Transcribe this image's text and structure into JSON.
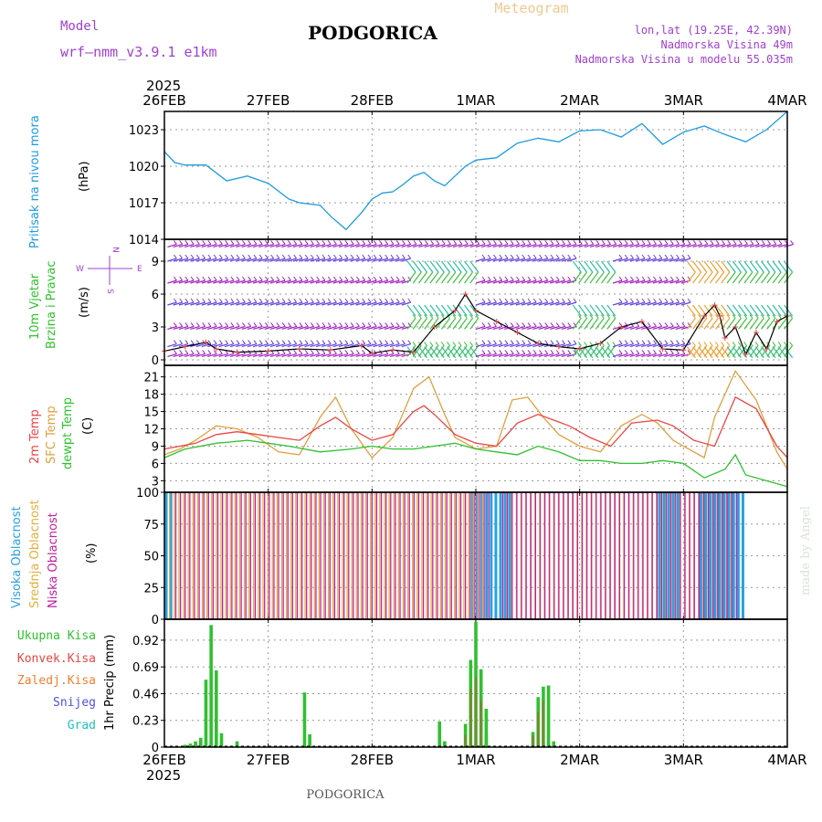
{
  "header": {
    "model_label": "Model",
    "model_name": "wrf–nmm_v3.9.1  e1km",
    "city": "PODGORICA",
    "meteogram": "Meteogram",
    "lonlat": "lon,lat (19.25E, 42.39N)",
    "elevation": "Nadmorska Visina 49m",
    "model_elevation": "Nadmorska Visina u modelu 55.035m"
  },
  "footer": {
    "city": "PODGORICA",
    "credit": "made by Angel"
  },
  "colors": {
    "pressure": "#1e9be0",
    "temp2m": "#e84545",
    "sfc": "#e0a040",
    "dewpt": "#30c030",
    "high_cloud": "#2aa0e0",
    "mid_cloud": "#e0b040",
    "low_cloud": "#c020a0",
    "rain_total": "#30c030",
    "rain_conv": "#e84545",
    "rain_frz": "#f07f30",
    "snow": "#5050e0",
    "graupel": "#20c0c0",
    "axis_label_purple": "#a040d0",
    "year_label": "#000000"
  },
  "chart_data": [
    {
      "type": "line",
      "panel": "pressure",
      "y_label_left": "Pritisak na nivou mora",
      "ylabel": "(hPa)",
      "ylim": [
        1014,
        1024.5
      ],
      "yticks": [
        1014,
        1017,
        1020,
        1023
      ],
      "grid": true,
      "x_ticks": [
        "26FEB",
        "27FEB",
        "28FEB",
        "1MAR",
        "2MAR",
        "3MAR",
        "4MAR"
      ],
      "x_year": "2025",
      "series": [
        {
          "x": [
            0,
            0.1,
            0.2,
            0.4,
            0.6,
            0.8,
            1.0,
            1.2,
            1.3,
            1.5,
            1.6,
            1.75,
            1.9,
            2.0,
            2.1,
            2.2,
            2.3,
            2.4,
            2.5,
            2.6,
            2.7,
            2.8,
            2.9,
            3.0,
            3.2,
            3.4,
            3.6,
            3.8,
            4.0,
            4.2,
            4.4,
            4.6,
            4.8,
            5.0,
            5.2,
            5.4,
            5.6,
            5.8,
            6.0
          ],
          "y": [
            1021.2,
            1020.3,
            1020.1,
            1020.1,
            1018.8,
            1019.2,
            1018.6,
            1017.3,
            1017.0,
            1016.8,
            1015.9,
            1014.8,
            1016.2,
            1017.3,
            1017.8,
            1017.9,
            1018.5,
            1019.2,
            1019.5,
            1018.8,
            1018.4,
            1019.2,
            1020.0,
            1020.5,
            1020.7,
            1021.9,
            1022.3,
            1022.0,
            1022.9,
            1023.0,
            1022.4,
            1023.5,
            1021.8,
            1022.8,
            1023.3,
            1022.6,
            1022.0,
            1023.0,
            1024.5
          ]
        }
      ]
    },
    {
      "type": "line",
      "panel": "wind",
      "y_label_left": [
        "10m Vjetar",
        "Brzina i Pravac"
      ],
      "ylabel": "(m/s)",
      "compass": {
        "n": "N",
        "s": "S",
        "e": "E",
        "w": "W"
      },
      "ylim": [
        -0.5,
        11
      ],
      "yticks": [
        0,
        3,
        6,
        9
      ],
      "grid": true,
      "series": [
        {
          "name": "speed",
          "x": [
            0,
            0.2,
            0.4,
            0.5,
            0.7,
            1.0,
            1.3,
            1.6,
            1.9,
            2.0,
            2.2,
            2.4,
            2.6,
            2.8,
            2.9,
            3.0,
            3.2,
            3.4,
            3.6,
            3.8,
            4.0,
            4.2,
            4.4,
            4.6,
            4.8,
            5.0,
            5.2,
            5.3,
            5.35,
            5.4,
            5.5,
            5.6,
            5.7,
            5.8,
            5.9,
            6.0
          ],
          "y": [
            0.8,
            1.2,
            1.6,
            1.0,
            0.7,
            0.8,
            1.0,
            0.9,
            1.3,
            0.6,
            0.9,
            0.7,
            3.0,
            4.5,
            6.0,
            4.5,
            3.5,
            2.5,
            1.5,
            1.2,
            1.0,
            1.5,
            3.0,
            3.5,
            1.0,
            0.9,
            4.0,
            5.0,
            4.0,
            2.0,
            3.0,
            0.5,
            2.5,
            1.0,
            3.5,
            4.0
          ]
        }
      ]
    },
    {
      "type": "line",
      "panel": "temperature",
      "y_labels": [
        "2m Temp",
        "SFC Temp",
        "dewpt Temp"
      ],
      "ylabel": "(C)",
      "ylim": [
        1,
        23
      ],
      "yticks": [
        3,
        6,
        9,
        12,
        15,
        18,
        21
      ],
      "grid": true,
      "series": [
        {
          "name": "2m Temp",
          "x": [
            0,
            0.15,
            0.3,
            0.5,
            0.7,
            0.9,
            1.1,
            1.3,
            1.5,
            1.65,
            1.8,
            2.0,
            2.2,
            2.4,
            2.5,
            2.6,
            2.8,
            3.0,
            3.2,
            3.4,
            3.6,
            3.75,
            3.9,
            4.1,
            4.3,
            4.5,
            4.75,
            4.9,
            5.1,
            5.3,
            5.5,
            5.7,
            5.9,
            6.0
          ],
          "y": [
            8.5,
            9.0,
            9.5,
            11.0,
            11.5,
            11.0,
            10.5,
            10.0,
            12.5,
            14.0,
            12.0,
            10.0,
            11.0,
            15.0,
            16.0,
            14.5,
            11.0,
            9.5,
            9.0,
            13.0,
            14.5,
            13.5,
            12.5,
            10.5,
            9.0,
            13.0,
            13.5,
            12.5,
            10.0,
            9.0,
            17.5,
            15.5,
            9.0,
            7.0
          ]
        },
        {
          "name": "SFC Temp",
          "x": [
            0,
            0.15,
            0.3,
            0.5,
            0.7,
            0.9,
            1.1,
            1.3,
            1.5,
            1.65,
            1.8,
            2.0,
            2.2,
            2.4,
            2.55,
            2.7,
            2.8,
            3.0,
            3.2,
            3.35,
            3.5,
            3.65,
            3.8,
            4.0,
            4.2,
            4.4,
            4.6,
            4.75,
            4.9,
            5.1,
            5.2,
            5.3,
            5.5,
            5.7,
            5.9,
            6.0
          ],
          "y": [
            7.5,
            8.5,
            10.0,
            12.5,
            12.0,
            10.5,
            8.0,
            7.5,
            14.0,
            17.5,
            12.0,
            7.0,
            10.5,
            19.0,
            21.0,
            14.5,
            10.5,
            8.5,
            9.0,
            17.0,
            17.5,
            14.0,
            11.0,
            9.0,
            8.0,
            12.5,
            14.5,
            13.0,
            10.0,
            8.0,
            7.0,
            14.0,
            22.0,
            17.0,
            8.0,
            5.0
          ]
        },
        {
          "name": "dewpt Temp",
          "x": [
            0,
            0.2,
            0.5,
            0.8,
            1.0,
            1.2,
            1.5,
            1.8,
            2.0,
            2.2,
            2.4,
            2.6,
            2.8,
            3.0,
            3.2,
            3.4,
            3.6,
            3.8,
            4.0,
            4.2,
            4.4,
            4.6,
            4.8,
            5.0,
            5.2,
            5.4,
            5.5,
            5.6,
            5.8,
            6.0
          ],
          "y": [
            7.0,
            8.5,
            9.5,
            10.0,
            9.5,
            9.0,
            8.0,
            8.5,
            9.0,
            8.5,
            8.5,
            9.0,
            9.5,
            8.5,
            8.0,
            7.5,
            9.0,
            8.0,
            6.5,
            6.5,
            6.0,
            6.0,
            6.5,
            6.0,
            3.5,
            5.0,
            7.5,
            4.0,
            3.0,
            2.0
          ]
        }
      ]
    },
    {
      "type": "bar",
      "panel": "cloud",
      "y_labels": [
        "Visoka Oblacnost",
        "Srednja Oblacnost",
        "Niska Oblacnost"
      ],
      "ylabel": "(%)",
      "ylim": [
        0,
        100
      ],
      "yticks": [
        0,
        25,
        50,
        75,
        100
      ],
      "grid": true,
      "series": [
        {
          "name": "Visoka Oblacnost",
          "x_ranges": [
            [
              0.0,
              0.1
            ],
            [
              2.95,
              3.35
            ],
            [
              4.75,
              4.95
            ],
            [
              5.15,
              5.6
            ]
          ],
          "value": 100
        },
        {
          "name": "Srednja Oblacnost",
          "x_ranges": [
            [
              0.05,
              3.1
            ],
            [
              3.3,
              5.5
            ]
          ],
          "value": 100
        },
        {
          "name": "Niska Oblacnost",
          "x_ranges": [
            [
              0.1,
              3.15
            ],
            [
              3.25,
              5.55
            ]
          ],
          "value": 100
        }
      ]
    },
    {
      "type": "bar",
      "panel": "precip",
      "y_labels": [
        "Ukupna Kisa",
        "Konvek.Kisa",
        "Zaledj.Kisa",
        "Snijeg",
        "Grad"
      ],
      "ylabel": "1hr Precip (mm)",
      "ylim": [
        0,
        1.1
      ],
      "yticks": [
        0,
        0.23,
        0.46,
        0.69,
        0.92
      ],
      "grid": true,
      "x_ticks": [
        "26FEB",
        "27FEB",
        "28FEB",
        "1MAR",
        "2MAR",
        "3MAR",
        "4MAR"
      ],
      "x_year": "2025",
      "series": [
        {
          "name": "Ukupna Kisa",
          "x": [
            0.2,
            0.25,
            0.3,
            0.35,
            0.4,
            0.45,
            0.5,
            0.55,
            0.65,
            0.7,
            1.35,
            1.4,
            1.45,
            2.65,
            2.7,
            2.9,
            2.95,
            3.0,
            3.05,
            3.1,
            3.1,
            3.55,
            3.6,
            3.65,
            3.7,
            3.75
          ],
          "y": [
            0.02,
            0.03,
            0.05,
            0.08,
            0.58,
            1.05,
            0.66,
            0.12,
            0.01,
            0.05,
            0.47,
            0.11,
            0.01,
            0.22,
            0.05,
            0.2,
            0.75,
            1.08,
            0.67,
            0.33,
            0.12,
            0.13,
            0.43,
            0.52,
            0.53,
            0.05
          ]
        },
        {
          "name": "Konvek.Kisa",
          "x": [
            2.9,
            2.95,
            3.0,
            3.05,
            3.55,
            3.6,
            3.65
          ],
          "y": [
            0.1,
            0.5,
            0.6,
            0.4,
            0.1,
            0.3,
            0.4
          ]
        }
      ]
    }
  ]
}
